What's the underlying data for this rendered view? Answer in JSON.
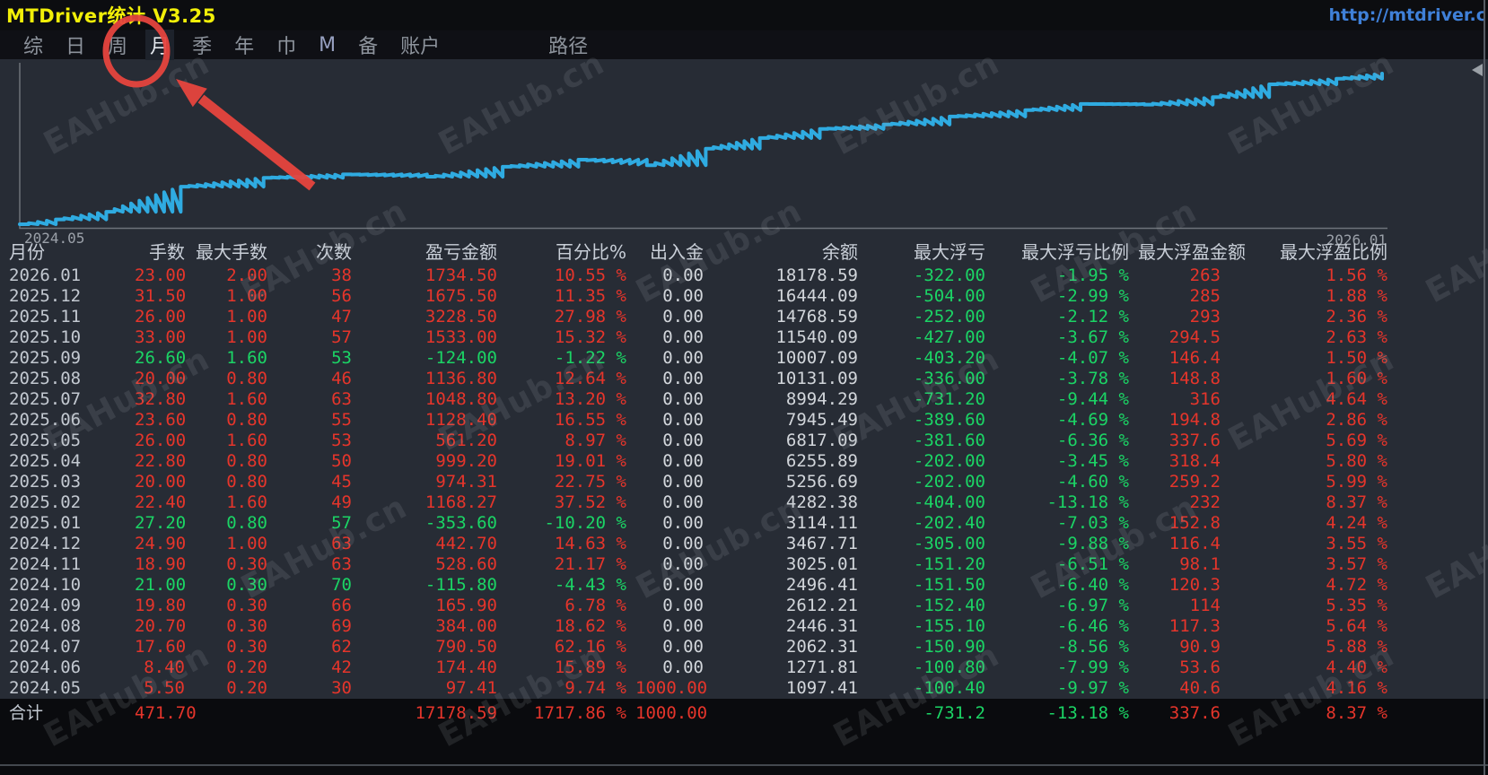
{
  "window": {
    "title": "MTDriver统计 V3.25",
    "url": "http://mtdriver.c"
  },
  "menu": {
    "items": [
      {
        "name": "summary",
        "label": "综"
      },
      {
        "name": "day",
        "label": "日"
      },
      {
        "name": "week",
        "label": "周"
      },
      {
        "name": "month",
        "label": "月",
        "active": true
      },
      {
        "name": "quarter",
        "label": "季"
      },
      {
        "name": "year",
        "label": "年"
      },
      {
        "name": "currency",
        "label": "巾"
      },
      {
        "name": "m",
        "label": "M",
        "accent": true
      },
      {
        "name": "backup",
        "label": "备"
      },
      {
        "name": "account",
        "label": "账户"
      },
      {
        "name": "path",
        "label": "路径"
      }
    ]
  },
  "watermark": {
    "text": "EAHub.cn"
  },
  "chart_data": {
    "type": "line",
    "title": "",
    "x_start_label": "2024.05",
    "x_end_label": "2026.01",
    "y_scale": "log",
    "grid": false,
    "legend": "none",
    "line_color": "#2fabe1",
    "start_balance": 1000,
    "series": [
      {
        "name": "余额",
        "points": [
          {
            "month": "2024.05",
            "trades": 30,
            "balance": 1097.41
          },
          {
            "month": "2024.06",
            "trades": 42,
            "balance": 1271.81
          },
          {
            "month": "2024.07",
            "trades": 62,
            "balance": 2062.31
          },
          {
            "month": "2024.08",
            "trades": 69,
            "balance": 2446.31
          },
          {
            "month": "2024.09",
            "trades": 66,
            "balance": 2612.21
          },
          {
            "month": "2024.10",
            "trades": 70,
            "balance": 2496.41
          },
          {
            "month": "2024.11",
            "trades": 63,
            "balance": 3025.01
          },
          {
            "month": "2024.12",
            "trades": 63,
            "balance": 3467.71
          },
          {
            "month": "2025.01",
            "trades": 57,
            "balance": 3114.11
          },
          {
            "month": "2025.02",
            "trades": 49,
            "balance": 4282.38
          },
          {
            "month": "2025.03",
            "trades": 45,
            "balance": 5256.69
          },
          {
            "month": "2025.04",
            "trades": 50,
            "balance": 6255.89
          },
          {
            "month": "2025.05",
            "trades": 53,
            "balance": 6817.09
          },
          {
            "month": "2025.06",
            "trades": 55,
            "balance": 7945.49
          },
          {
            "month": "2025.07",
            "trades": 63,
            "balance": 8994.29
          },
          {
            "month": "2025.08",
            "trades": 46,
            "balance": 10131.09
          },
          {
            "month": "2025.09",
            "trades": 53,
            "balance": 10007.09
          },
          {
            "month": "2025.10",
            "trades": 57,
            "balance": 11540.09
          },
          {
            "month": "2025.11",
            "trades": 47,
            "balance": 14768.59
          },
          {
            "month": "2025.12",
            "trades": 56,
            "balance": 16444.09
          },
          {
            "month": "2026.01",
            "trades": 38,
            "balance": 18178.59
          }
        ]
      }
    ]
  },
  "table": {
    "column_keys": [
      "month",
      "lots",
      "max_lots",
      "count",
      "pnl",
      "pct",
      "inout",
      "balance",
      "max_dd",
      "max_dd_pct",
      "max_fp",
      "max_fp_pct"
    ],
    "headers": [
      "月份",
      "手数",
      "最大手数",
      "次数",
      "盈亏金额",
      "百分比%",
      "出入金",
      "余额",
      "最大浮亏",
      "最大浮亏比例",
      "最大浮盈金额",
      "最大浮盈比例"
    ],
    "rows": [
      {
        "month": "2026.01",
        "lots": "23.00",
        "max_lots": "2.00",
        "count": "38",
        "pnl": "1734.50",
        "pct": "10.55 %",
        "inout": "0.00",
        "balance": "18178.59",
        "max_dd": "-322.00",
        "max_dd_pct": "-1.95 %",
        "max_fp": "263",
        "max_fp_pct": "1.56 %",
        "tone": "profit"
      },
      {
        "month": "2025.12",
        "lots": "31.50",
        "max_lots": "1.00",
        "count": "56",
        "pnl": "1675.50",
        "pct": "11.35 %",
        "inout": "0.00",
        "balance": "16444.09",
        "max_dd": "-504.00",
        "max_dd_pct": "-2.99 %",
        "max_fp": "285",
        "max_fp_pct": "1.88 %",
        "tone": "profit"
      },
      {
        "month": "2025.11",
        "lots": "26.00",
        "max_lots": "1.00",
        "count": "47",
        "pnl": "3228.50",
        "pct": "27.98 %",
        "inout": "0.00",
        "balance": "14768.59",
        "max_dd": "-252.00",
        "max_dd_pct": "-2.12 %",
        "max_fp": "293",
        "max_fp_pct": "2.36 %",
        "tone": "profit"
      },
      {
        "month": "2025.10",
        "lots": "33.00",
        "max_lots": "1.00",
        "count": "57",
        "pnl": "1533.00",
        "pct": "15.32 %",
        "inout": "0.00",
        "balance": "11540.09",
        "max_dd": "-427.00",
        "max_dd_pct": "-3.67 %",
        "max_fp": "294.5",
        "max_fp_pct": "2.63 %",
        "tone": "profit"
      },
      {
        "month": "2025.09",
        "lots": "26.60",
        "max_lots": "1.60",
        "count": "53",
        "pnl": "-124.00",
        "pct": "-1.22 %",
        "inout": "0.00",
        "balance": "10007.09",
        "max_dd": "-403.20",
        "max_dd_pct": "-4.07 %",
        "max_fp": "146.4",
        "max_fp_pct": "1.50 %",
        "tone": "loss"
      },
      {
        "month": "2025.08",
        "lots": "20.00",
        "max_lots": "0.80",
        "count": "46",
        "pnl": "1136.80",
        "pct": "12.64 %",
        "inout": "0.00",
        "balance": "10131.09",
        "max_dd": "-336.00",
        "max_dd_pct": "-3.78 %",
        "max_fp": "148.8",
        "max_fp_pct": "1.60 %",
        "tone": "profit"
      },
      {
        "month": "2025.07",
        "lots": "32.80",
        "max_lots": "1.60",
        "count": "63",
        "pnl": "1048.80",
        "pct": "13.20 %",
        "inout": "0.00",
        "balance": "8994.29",
        "max_dd": "-731.20",
        "max_dd_pct": "-9.44 %",
        "max_fp": "316",
        "max_fp_pct": "4.64 %",
        "tone": "profit"
      },
      {
        "month": "2025.06",
        "lots": "23.60",
        "max_lots": "0.80",
        "count": "55",
        "pnl": "1128.40",
        "pct": "16.55 %",
        "inout": "0.00",
        "balance": "7945.49",
        "max_dd": "-389.60",
        "max_dd_pct": "-4.69 %",
        "max_fp": "194.8",
        "max_fp_pct": "2.86 %",
        "tone": "profit"
      },
      {
        "month": "2025.05",
        "lots": "26.00",
        "max_lots": "1.60",
        "count": "53",
        "pnl": "561.20",
        "pct": "8.97 %",
        "inout": "0.00",
        "balance": "6817.09",
        "max_dd": "-381.60",
        "max_dd_pct": "-6.36 %",
        "max_fp": "337.6",
        "max_fp_pct": "5.69 %",
        "tone": "profit"
      },
      {
        "month": "2025.04",
        "lots": "22.80",
        "max_lots": "0.80",
        "count": "50",
        "pnl": "999.20",
        "pct": "19.01 %",
        "inout": "0.00",
        "balance": "6255.89",
        "max_dd": "-202.00",
        "max_dd_pct": "-3.45 %",
        "max_fp": "318.4",
        "max_fp_pct": "5.80 %",
        "tone": "profit"
      },
      {
        "month": "2025.03",
        "lots": "20.00",
        "max_lots": "0.80",
        "count": "45",
        "pnl": "974.31",
        "pct": "22.75 %",
        "inout": "0.00",
        "balance": "5256.69",
        "max_dd": "-202.00",
        "max_dd_pct": "-4.60 %",
        "max_fp": "259.2",
        "max_fp_pct": "5.99 %",
        "tone": "profit"
      },
      {
        "month": "2025.02",
        "lots": "22.40",
        "max_lots": "1.60",
        "count": "49",
        "pnl": "1168.27",
        "pct": "37.52 %",
        "inout": "0.00",
        "balance": "4282.38",
        "max_dd": "-404.00",
        "max_dd_pct": "-13.18 %",
        "max_fp": "232",
        "max_fp_pct": "8.37 %",
        "tone": "profit"
      },
      {
        "month": "2025.01",
        "lots": "27.20",
        "max_lots": "0.80",
        "count": "57",
        "pnl": "-353.60",
        "pct": "-10.20 %",
        "inout": "0.00",
        "balance": "3114.11",
        "max_dd": "-202.40",
        "max_dd_pct": "-7.03 %",
        "max_fp": "152.8",
        "max_fp_pct": "4.24 %",
        "tone": "loss"
      },
      {
        "month": "2024.12",
        "lots": "24.90",
        "max_lots": "1.00",
        "count": "63",
        "pnl": "442.70",
        "pct": "14.63 %",
        "inout": "0.00",
        "balance": "3467.71",
        "max_dd": "-305.00",
        "max_dd_pct": "-9.88 %",
        "max_fp": "116.4",
        "max_fp_pct": "3.55 %",
        "tone": "profit"
      },
      {
        "month": "2024.11",
        "lots": "18.90",
        "max_lots": "0.30",
        "count": "63",
        "pnl": "528.60",
        "pct": "21.17 %",
        "inout": "0.00",
        "balance": "3025.01",
        "max_dd": "-151.20",
        "max_dd_pct": "-6.51 %",
        "max_fp": "98.1",
        "max_fp_pct": "3.57 %",
        "tone": "profit"
      },
      {
        "month": "2024.10",
        "lots": "21.00",
        "max_lots": "0.30",
        "count": "70",
        "pnl": "-115.80",
        "pct": "-4.43 %",
        "inout": "0.00",
        "balance": "2496.41",
        "max_dd": "-151.50",
        "max_dd_pct": "-6.40 %",
        "max_fp": "120.3",
        "max_fp_pct": "4.72 %",
        "tone": "loss"
      },
      {
        "month": "2024.09",
        "lots": "19.80",
        "max_lots": "0.30",
        "count": "66",
        "pnl": "165.90",
        "pct": "6.78 %",
        "inout": "0.00",
        "balance": "2612.21",
        "max_dd": "-152.40",
        "max_dd_pct": "-6.97 %",
        "max_fp": "114",
        "max_fp_pct": "5.35 %",
        "tone": "profit"
      },
      {
        "month": "2024.08",
        "lots": "20.70",
        "max_lots": "0.30",
        "count": "69",
        "pnl": "384.00",
        "pct": "18.62 %",
        "inout": "0.00",
        "balance": "2446.31",
        "max_dd": "-155.10",
        "max_dd_pct": "-6.46 %",
        "max_fp": "117.3",
        "max_fp_pct": "5.64 %",
        "tone": "profit"
      },
      {
        "month": "2024.07",
        "lots": "17.60",
        "max_lots": "0.30",
        "count": "62",
        "pnl": "790.50",
        "pct": "62.16 %",
        "inout": "0.00",
        "balance": "2062.31",
        "max_dd": "-150.90",
        "max_dd_pct": "-8.56 %",
        "max_fp": "90.9",
        "max_fp_pct": "5.88 %",
        "tone": "profit"
      },
      {
        "month": "2024.06",
        "lots": "8.40",
        "max_lots": "0.20",
        "count": "42",
        "pnl": "174.40",
        "pct": "15.89 %",
        "inout": "0.00",
        "balance": "1271.81",
        "max_dd": "-100.80",
        "max_dd_pct": "-7.99 %",
        "max_fp": "53.6",
        "max_fp_pct": "4.40 %",
        "tone": "profit"
      },
      {
        "month": "2024.05",
        "lots": "5.50",
        "max_lots": "0.20",
        "count": "30",
        "pnl": "97.41",
        "pct": "9.74 %",
        "inout": "1000.00",
        "balance": "1097.41",
        "max_dd": "-100.40",
        "max_dd_pct": "-9.97 %",
        "max_fp": "40.6",
        "max_fp_pct": "4.16 %",
        "tone": "profit"
      }
    ],
    "total": {
      "month": "合计",
      "lots": "471.70",
      "max_lots": "",
      "count": "",
      "pnl": "17178.59",
      "pct": "1717.86 %",
      "inout": "1000.00",
      "balance": "",
      "max_dd": "-731.2",
      "max_dd_pct": "-13.18 %",
      "max_fp": "337.6",
      "max_fp_pct": "8.37 %",
      "tone": "profit"
    }
  }
}
